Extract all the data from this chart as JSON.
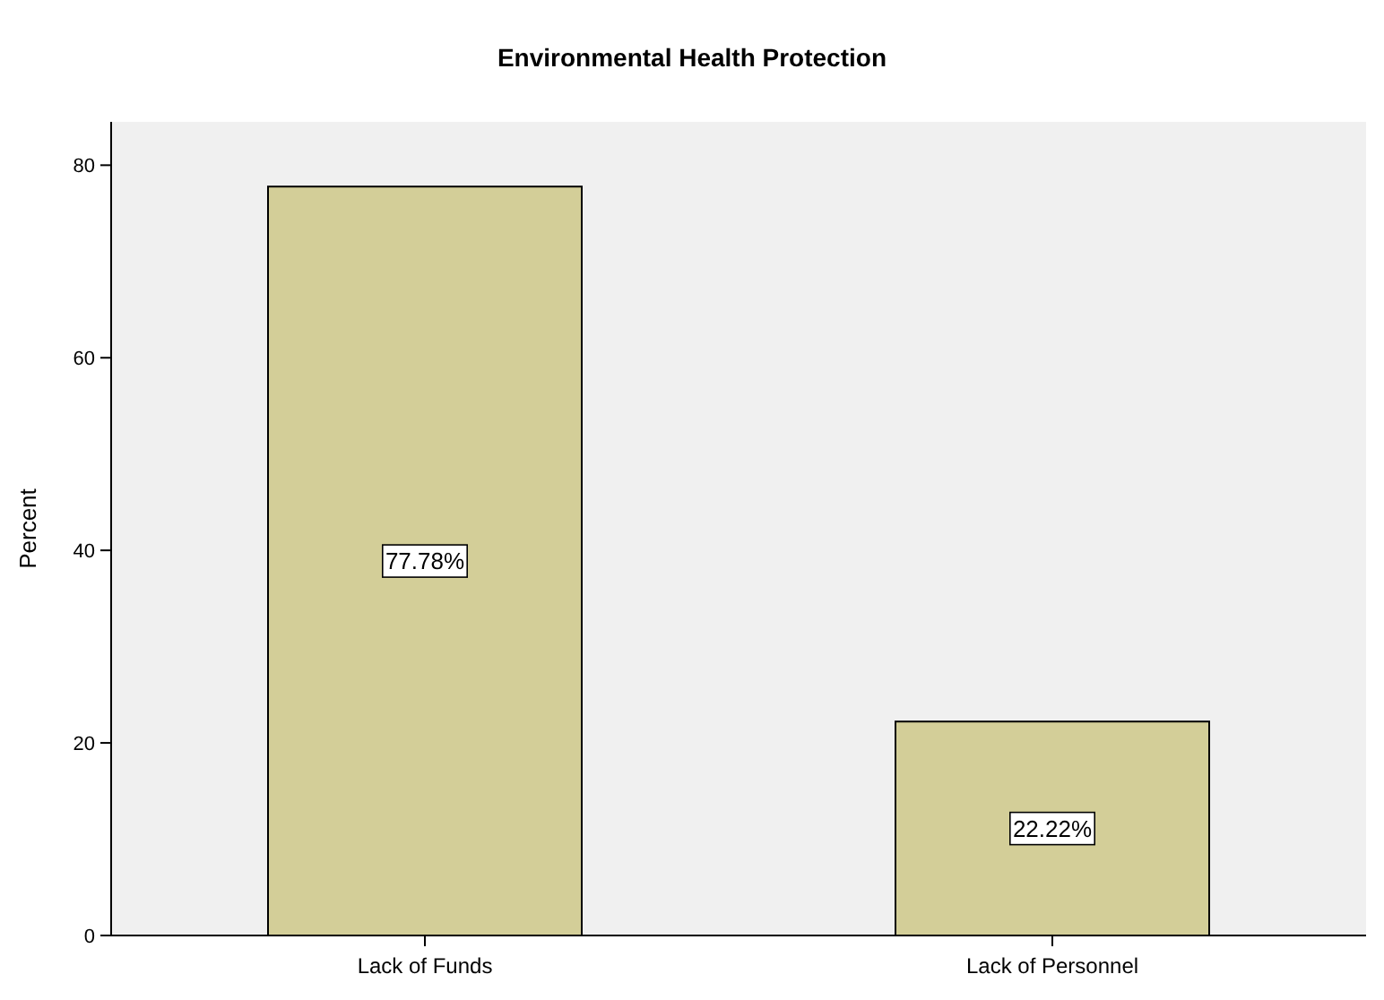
{
  "chart_data": {
    "type": "bar",
    "title": "Environmental Health Protection",
    "ylabel": "Percent",
    "categories": [
      "Lack of Funds",
      "Lack of Personnel"
    ],
    "values": [
      77.78,
      22.22
    ],
    "value_labels": [
      "77.78%",
      "22.22%"
    ],
    "color": "#d3ce98",
    "ylim": [
      0,
      84.5
    ],
    "yticks": [
      0,
      20,
      40,
      60,
      80
    ],
    "grid": false
  }
}
